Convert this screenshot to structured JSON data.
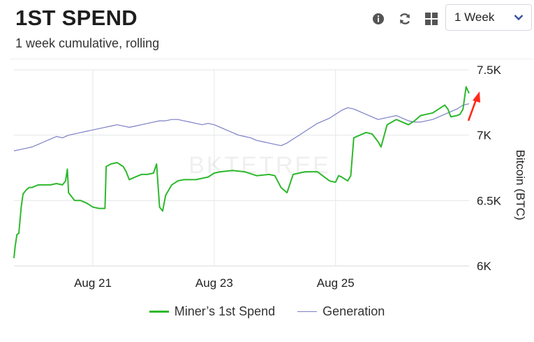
{
  "header": {
    "title": "1ST SPEND",
    "subtitle": "1 week cumulative, rolling"
  },
  "toolbar": {
    "info_icon": "info-icon",
    "refresh_icon": "refresh-icon",
    "grid_icon": "grid-icon",
    "range_select": {
      "selected": "1 Week"
    }
  },
  "watermark": "BKTETREE",
  "colors": {
    "miner_spend": "#2db82d",
    "generation": "#7b7fc4",
    "arrow": "#ff2a1a",
    "grid": "#e4e6ea"
  },
  "chart_data": {
    "type": "line",
    "title": "1ST SPEND",
    "subtitle": "1 week cumulative, rolling",
    "xlabel": "",
    "ylabel": "Bitcoin (BTC)",
    "x_ticks": [
      "Aug 21",
      "Aug 23",
      "Aug 25"
    ],
    "x_tick_days": [
      21,
      23,
      25
    ],
    "xlim": [
      19.7,
      27.2
    ],
    "y_ticks": [
      "6K",
      "6.5K",
      "7K",
      "7.5K"
    ],
    "y_tick_values": [
      6000,
      6500,
      7000,
      7500
    ],
    "ylim": [
      6000,
      7500
    ],
    "y_axis_side": "right",
    "grid": true,
    "legend_position": "bottom",
    "series": [
      {
        "name": "Miner’s 1st Spend",
        "points": [
          [
            19.7,
            6060
          ],
          [
            19.72,
            6150
          ],
          [
            19.75,
            6240
          ],
          [
            19.78,
            6250
          ],
          [
            19.82,
            6450
          ],
          [
            19.85,
            6550
          ],
          [
            19.9,
            6580
          ],
          [
            19.95,
            6600
          ],
          [
            20.0,
            6600
          ],
          [
            20.05,
            6610
          ],
          [
            20.1,
            6620
          ],
          [
            20.2,
            6620
          ],
          [
            20.3,
            6620
          ],
          [
            20.4,
            6630
          ],
          [
            20.5,
            6620
          ],
          [
            20.55,
            6650
          ],
          [
            20.58,
            6740
          ],
          [
            20.6,
            6560
          ],
          [
            20.7,
            6500
          ],
          [
            20.8,
            6500
          ],
          [
            20.9,
            6480
          ],
          [
            21.0,
            6450
          ],
          [
            21.1,
            6440
          ],
          [
            21.2,
            6440
          ],
          [
            21.22,
            6760
          ],
          [
            21.3,
            6780
          ],
          [
            21.4,
            6790
          ],
          [
            21.5,
            6760
          ],
          [
            21.55,
            6720
          ],
          [
            21.6,
            6660
          ],
          [
            21.7,
            6680
          ],
          [
            21.8,
            6700
          ],
          [
            21.9,
            6700
          ],
          [
            22.0,
            6710
          ],
          [
            22.05,
            6780
          ],
          [
            22.1,
            6450
          ],
          [
            22.15,
            6420
          ],
          [
            22.2,
            6540
          ],
          [
            22.3,
            6620
          ],
          [
            22.4,
            6650
          ],
          [
            22.5,
            6660
          ],
          [
            22.7,
            6660
          ],
          [
            22.9,
            6680
          ],
          [
            23.0,
            6710
          ],
          [
            23.1,
            6720
          ],
          [
            23.3,
            6730
          ],
          [
            23.5,
            6720
          ],
          [
            23.7,
            6690
          ],
          [
            23.9,
            6700
          ],
          [
            24.0,
            6690
          ],
          [
            24.1,
            6600
          ],
          [
            24.2,
            6560
          ],
          [
            24.3,
            6700
          ],
          [
            24.5,
            6720
          ],
          [
            24.7,
            6720
          ],
          [
            24.9,
            6650
          ],
          [
            25.0,
            6640
          ],
          [
            25.05,
            6690
          ],
          [
            25.1,
            6680
          ],
          [
            25.2,
            6650
          ],
          [
            25.25,
            6690
          ],
          [
            25.3,
            6980
          ],
          [
            25.5,
            7020
          ],
          [
            25.6,
            7010
          ],
          [
            25.7,
            6950
          ],
          [
            25.75,
            6910
          ],
          [
            25.85,
            7080
          ],
          [
            26.0,
            7120
          ],
          [
            26.1,
            7100
          ],
          [
            26.2,
            7080
          ],
          [
            26.3,
            7110
          ],
          [
            26.4,
            7150
          ],
          [
            26.5,
            7160
          ],
          [
            26.6,
            7170
          ],
          [
            26.7,
            7200
          ],
          [
            26.8,
            7230
          ],
          [
            26.85,
            7200
          ],
          [
            26.9,
            7140
          ],
          [
            27.0,
            7150
          ],
          [
            27.05,
            7160
          ],
          [
            27.1,
            7200
          ],
          [
            27.15,
            7370
          ],
          [
            27.2,
            7320
          ]
        ]
      },
      {
        "name": "Generation",
        "points": [
          [
            19.7,
            6880
          ],
          [
            19.8,
            6890
          ],
          [
            19.9,
            6900
          ],
          [
            20.0,
            6910
          ],
          [
            20.1,
            6930
          ],
          [
            20.2,
            6950
          ],
          [
            20.3,
            6970
          ],
          [
            20.4,
            6990
          ],
          [
            20.5,
            6980
          ],
          [
            20.6,
            7000
          ],
          [
            20.7,
            7010
          ],
          [
            20.8,
            7020
          ],
          [
            20.9,
            7030
          ],
          [
            21.0,
            7040
          ],
          [
            21.1,
            7050
          ],
          [
            21.2,
            7060
          ],
          [
            21.3,
            7070
          ],
          [
            21.4,
            7080
          ],
          [
            21.5,
            7070
          ],
          [
            21.6,
            7060
          ],
          [
            21.7,
            7070
          ],
          [
            21.8,
            7080
          ],
          [
            21.9,
            7090
          ],
          [
            22.0,
            7100
          ],
          [
            22.1,
            7110
          ],
          [
            22.2,
            7110
          ],
          [
            22.3,
            7120
          ],
          [
            22.4,
            7120
          ],
          [
            22.5,
            7110
          ],
          [
            22.6,
            7100
          ],
          [
            22.7,
            7090
          ],
          [
            22.8,
            7080
          ],
          [
            22.9,
            7090
          ],
          [
            23.0,
            7080
          ],
          [
            23.1,
            7060
          ],
          [
            23.2,
            7040
          ],
          [
            23.3,
            7020
          ],
          [
            23.4,
            7000
          ],
          [
            23.5,
            6990
          ],
          [
            23.6,
            6980
          ],
          [
            23.7,
            6960
          ],
          [
            23.8,
            6950
          ],
          [
            23.9,
            6940
          ],
          [
            24.0,
            6930
          ],
          [
            24.1,
            6920
          ],
          [
            24.2,
            6940
          ],
          [
            24.3,
            6970
          ],
          [
            24.4,
            7000
          ],
          [
            24.5,
            7030
          ],
          [
            24.6,
            7060
          ],
          [
            24.7,
            7090
          ],
          [
            24.8,
            7110
          ],
          [
            24.9,
            7130
          ],
          [
            25.0,
            7160
          ],
          [
            25.1,
            7190
          ],
          [
            25.2,
            7210
          ],
          [
            25.3,
            7200
          ],
          [
            25.4,
            7180
          ],
          [
            25.5,
            7160
          ],
          [
            25.6,
            7140
          ],
          [
            25.7,
            7120
          ],
          [
            25.8,
            7130
          ],
          [
            25.9,
            7140
          ],
          [
            26.0,
            7150
          ],
          [
            26.1,
            7130
          ],
          [
            26.2,
            7110
          ],
          [
            26.3,
            7100
          ],
          [
            26.4,
            7100
          ],
          [
            26.5,
            7110
          ],
          [
            26.6,
            7120
          ],
          [
            26.7,
            7140
          ],
          [
            26.8,
            7160
          ],
          [
            26.9,
            7180
          ],
          [
            27.0,
            7200
          ],
          [
            27.1,
            7230
          ],
          [
            27.2,
            7240
          ]
        ]
      }
    ]
  }
}
